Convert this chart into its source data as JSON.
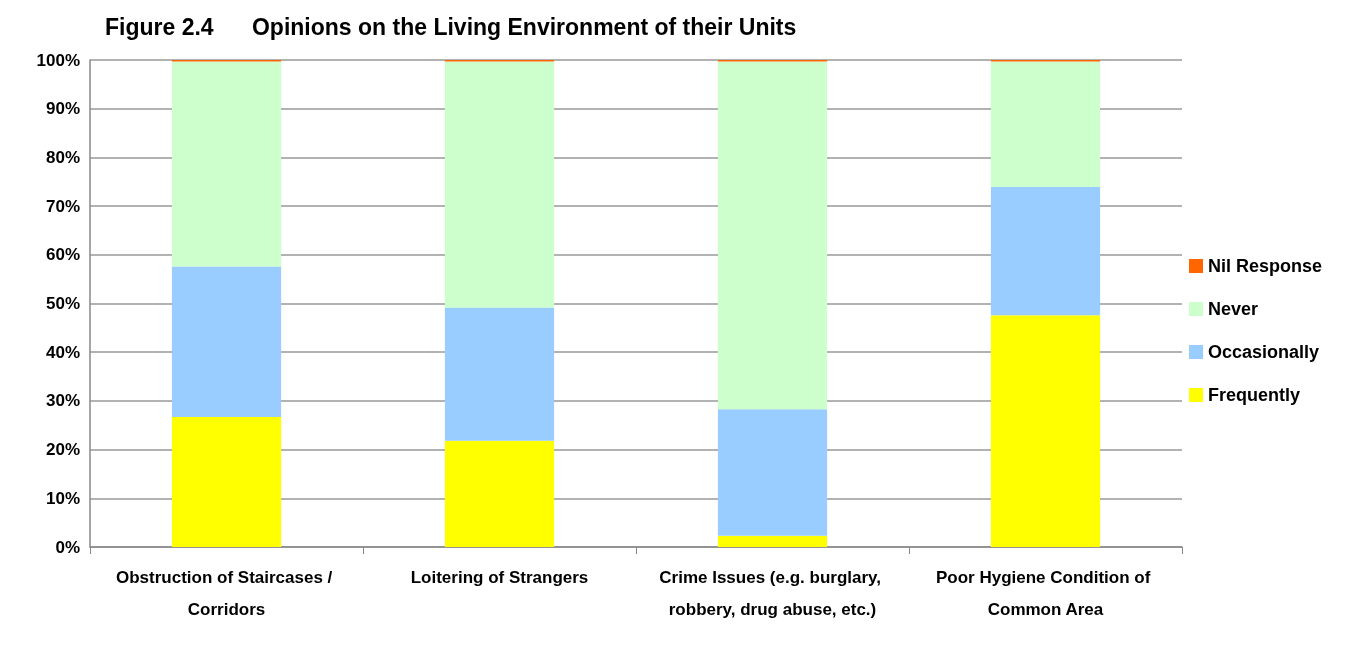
{
  "chart_data": {
    "type": "bar",
    "title": "Figure 2.4      Opinions on the Living Environment of their Units",
    "categories": [
      "Obstruction of Staircases / Corridors",
      "Loitering of Strangers",
      "Crime Issues (e.g. burglary, robbery, drug abuse, etc.)",
      "Poor Hygiene Condition of Common Area"
    ],
    "series": [
      {
        "name": "Frequently",
        "color": "#ffff00",
        "values": [
          26.7,
          21.8,
          2.3,
          47.6
        ]
      },
      {
        "name": "Occasionally",
        "color": "#99ccff",
        "values": [
          30.9,
          27.4,
          26.0,
          26.3
        ]
      },
      {
        "name": "Never",
        "color": "#ccffcc",
        "values": [
          42.1,
          50.5,
          71.4,
          25.8
        ]
      },
      {
        "name": "Nil Response",
        "color": "#ff6600",
        "values": [
          0.3,
          0.3,
          0.3,
          0.3
        ]
      }
    ],
    "stacked": true,
    "ylim": [
      0,
      100
    ],
    "yticks": [
      {
        "value": 0,
        "label": "0%"
      },
      {
        "value": 10,
        "label": "10%"
      },
      {
        "value": 20,
        "label": "20%"
      },
      {
        "value": 30,
        "label": "30%"
      },
      {
        "value": 40,
        "label": "40%"
      },
      {
        "value": 50,
        "label": "50%"
      },
      {
        "value": 60,
        "label": "60%"
      },
      {
        "value": 70,
        "label": "70%"
      },
      {
        "value": 80,
        "label": "80%"
      },
      {
        "value": 90,
        "label": "90%"
      },
      {
        "value": 100,
        "label": "100%"
      }
    ],
    "grid": "y",
    "legend": "right"
  }
}
